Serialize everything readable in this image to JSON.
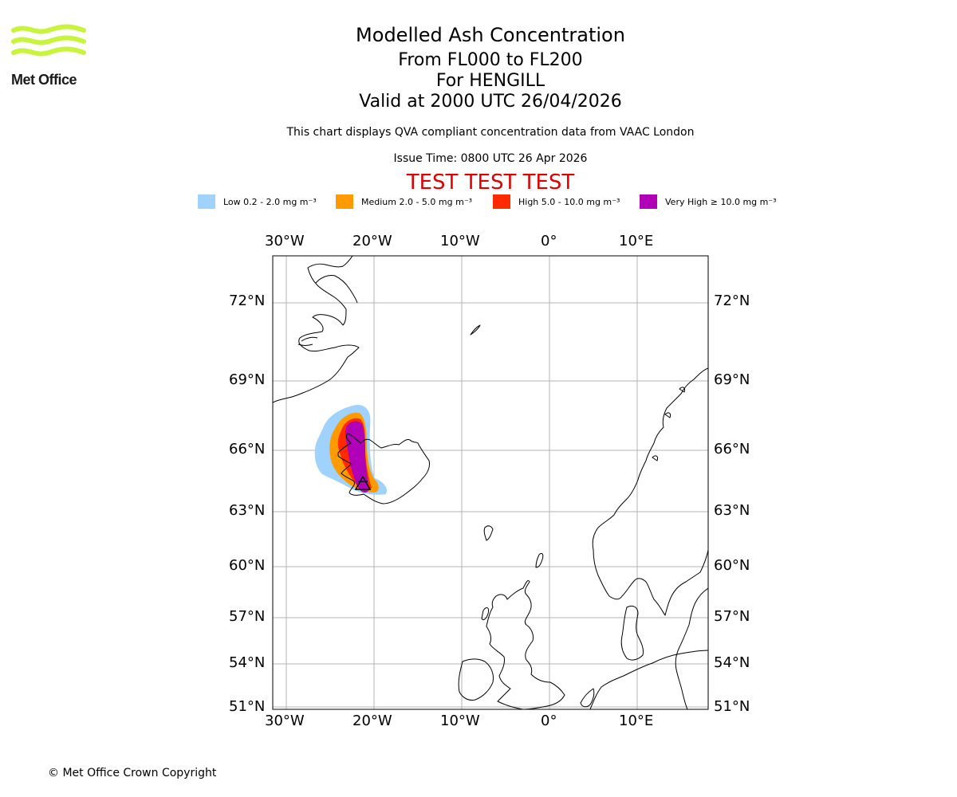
{
  "header": {
    "title": "Modelled Ash Concentration",
    "subtitle_levels": "From FL000 to FL200",
    "subtitle_volcano": "For HENGILL",
    "subtitle_valid": "Valid at 2000 UTC 26/04/2026",
    "description": "This chart displays QVA compliant concentration data from VAAC London",
    "issue_time": "Issue Time: 0800 UTC 26 Apr 2026",
    "test_banner": "TEST TEST TEST"
  },
  "logo": {
    "text": "Met Office"
  },
  "legend": [
    {
      "label": "Low 0.2 - 2.0 mg m⁻³",
      "color": "#9fd3fd"
    },
    {
      "label": "Medium 2.0 - 5.0 mg m⁻³",
      "color": "#ff9b00"
    },
    {
      "label": "High 5.0 - 10.0 mg m⁻³",
      "color": "#ff2a00"
    },
    {
      "label": "Very High ≥ 10.0 mg m⁻³",
      "color": "#b000b8"
    }
  ],
  "map": {
    "lon_ticks": [
      "30°W",
      "20°W",
      "10°W",
      "0°",
      "10°E"
    ],
    "lat_ticks": [
      "72°N",
      "69°N",
      "66°N",
      "63°N",
      "60°N",
      "57°N",
      "54°N",
      "51°N"
    ]
  },
  "footer": {
    "copyright": "© Met Office Crown Copyright"
  }
}
